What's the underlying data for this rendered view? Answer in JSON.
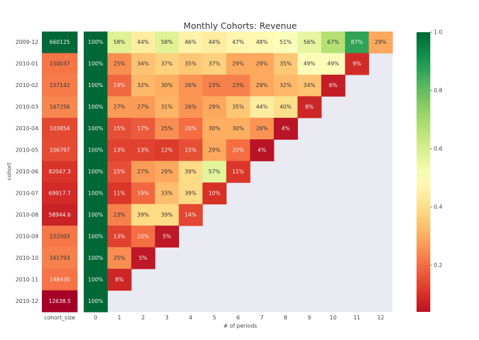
{
  "chart_data": {
    "type": "heatmap",
    "title": "Monthly Cohorts: Revenue",
    "xlabel": "# of periods",
    "ylabel": "cohort",
    "colormap": "RdYlGn",
    "color_range": [
      0.0,
      1.0
    ],
    "colorbar_ticks": [
      "0.2",
      "0.4",
      "0.6",
      "0.8",
      "1.0"
    ],
    "colorbar_tick_values": [
      0.2,
      0.4,
      0.6,
      0.8,
      1.0
    ],
    "cohorts": [
      "2009-12",
      "2010-01",
      "2010-02",
      "2010-03",
      "2010-04",
      "2010-05",
      "2010-06",
      "2010-07",
      "2010-08",
      "2010-09",
      "2010-10",
      "2010-11",
      "2010-12"
    ],
    "cohort_size_label": "cohort_size",
    "cohort_size": [
      "660125",
      "150037",
      "157142",
      "167256",
      "103854",
      "106797",
      "82047.3",
      "69917.7",
      "58944.6",
      "152003",
      "161793",
      "148430",
      "12638.5"
    ],
    "cohort_size_values": [
      660125,
      150037,
      157142,
      167256,
      103854,
      106797,
      82047.3,
      69917.7,
      58944.6,
      152003,
      161793,
      148430,
      12638.5
    ],
    "periods": [
      "0",
      "1",
      "2",
      "3",
      "4",
      "5",
      "6",
      "7",
      "8",
      "9",
      "10",
      "11",
      "12"
    ],
    "retention": [
      [
        100,
        58,
        44,
        58,
        46,
        44,
        47,
        48,
        51,
        56,
        67,
        87,
        29
      ],
      [
        100,
        25,
        34,
        37,
        35,
        37,
        29,
        29,
        35,
        49,
        49,
        9
      ],
      [
        100,
        19,
        32,
        30,
        26,
        23,
        23,
        29,
        32,
        34,
        6
      ],
      [
        100,
        27,
        27,
        31,
        26,
        29,
        35,
        44,
        40,
        8
      ],
      [
        100,
        15,
        17,
        25,
        20,
        30,
        30,
        26,
        4
      ],
      [
        100,
        13,
        13,
        12,
        15,
        29,
        20,
        4
      ],
      [
        100,
        15,
        27,
        29,
        39,
        57,
        11
      ],
      [
        100,
        11,
        19,
        33,
        39,
        10
      ],
      [
        100,
        23,
        39,
        39,
        14
      ],
      [
        100,
        13,
        20,
        5
      ],
      [
        100,
        25,
        5
      ],
      [
        100,
        8
      ],
      [
        100
      ]
    ],
    "colors": {
      "missing_bg": "#eaeaf2"
    }
  }
}
